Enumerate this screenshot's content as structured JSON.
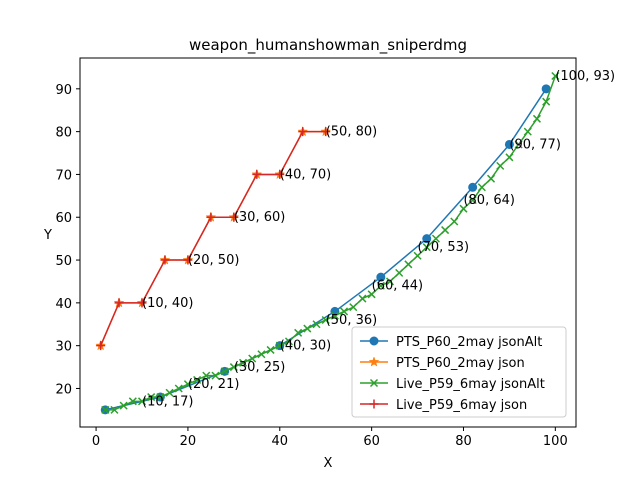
{
  "chart_data": {
    "type": "line",
    "title": "weapon_humanshowman_sniperdmg",
    "xlabel": "X",
    "ylabel": "Y",
    "xlim": [
      -3.5,
      104.5
    ],
    "ylim": [
      11.0,
      97.2
    ],
    "xticks": [
      0,
      20,
      40,
      60,
      80,
      100
    ],
    "yticks": [
      20,
      30,
      40,
      50,
      60,
      70,
      80,
      90
    ],
    "grid": false,
    "legend_position": "lower-right",
    "series": [
      {
        "name": "PTS_P60_2may jsonAlt",
        "color": "#1f77b4",
        "marker": "circle",
        "x": [
          2,
          14,
          28,
          40,
          52,
          62,
          72,
          82,
          90,
          98
        ],
        "y": [
          15,
          18,
          24,
          30,
          38,
          46,
          55,
          67,
          77,
          90
        ]
      },
      {
        "name": "PTS_P60_2may json",
        "color": "#ff7f0e",
        "marker": "star",
        "x": [
          1,
          5,
          10,
          15,
          20,
          25,
          30,
          35,
          40,
          45,
          50
        ],
        "y": [
          30,
          40,
          40,
          50,
          50,
          60,
          60,
          70,
          70,
          80,
          80
        ]
      },
      {
        "name": "Live_P59_6may jsonAlt",
        "color": "#2ca02c",
        "marker": "x",
        "x": [
          2,
          4,
          6,
          8,
          10,
          12,
          14,
          16,
          18,
          20,
          22,
          24,
          26,
          28,
          30,
          32,
          34,
          36,
          38,
          40,
          42,
          44,
          46,
          48,
          50,
          52,
          54,
          56,
          58,
          60,
          62,
          64,
          66,
          68,
          70,
          72,
          74,
          76,
          78,
          80,
          82,
          84,
          86,
          88,
          90,
          92,
          94,
          96,
          98,
          100
        ],
        "y": [
          15,
          15,
          16,
          17,
          17,
          18,
          18,
          19,
          20,
          21,
          22,
          23,
          23,
          24,
          25,
          26,
          27,
          28,
          29,
          30,
          31,
          33,
          34,
          35,
          36,
          37,
          38,
          39,
          41,
          42,
          44,
          45,
          47,
          49,
          51,
          53,
          55,
          57,
          59,
          62,
          64,
          67,
          69,
          72,
          74,
          77,
          80,
          83,
          87,
          93
        ]
      },
      {
        "name": "Live_P59_6may json",
        "color": "#d62728",
        "marker": "plus",
        "x": [
          1,
          5,
          10,
          15,
          20,
          25,
          30,
          35,
          40,
          45,
          50
        ],
        "y": [
          30,
          40,
          40,
          50,
          50,
          60,
          60,
          70,
          70,
          80,
          80
        ]
      }
    ],
    "annotations": [
      {
        "text": "(10, 17)",
        "x": 10,
        "y": 17
      },
      {
        "text": "(20, 21)",
        "x": 20,
        "y": 21
      },
      {
        "text": "(30, 25)",
        "x": 30,
        "y": 25
      },
      {
        "text": "(40, 30)",
        "x": 40,
        "y": 30
      },
      {
        "text": "(50, 36)",
        "x": 50,
        "y": 36
      },
      {
        "text": "(60, 44)",
        "x": 60,
        "y": 44
      },
      {
        "text": "(70, 53)",
        "x": 70,
        "y": 53
      },
      {
        "text": "(80, 64)",
        "x": 80,
        "y": 64
      },
      {
        "text": "(90, 77)",
        "x": 90,
        "y": 77
      },
      {
        "text": "(100, 93)",
        "x": 100,
        "y": 93
      },
      {
        "text": "(10, 40)",
        "x": 10,
        "y": 40
      },
      {
        "text": "(20, 50)",
        "x": 20,
        "y": 50
      },
      {
        "text": "(30, 60)",
        "x": 30,
        "y": 60
      },
      {
        "text": "(40, 70)",
        "x": 40,
        "y": 70
      },
      {
        "text": "(50, 80)",
        "x": 50,
        "y": 80
      }
    ]
  }
}
